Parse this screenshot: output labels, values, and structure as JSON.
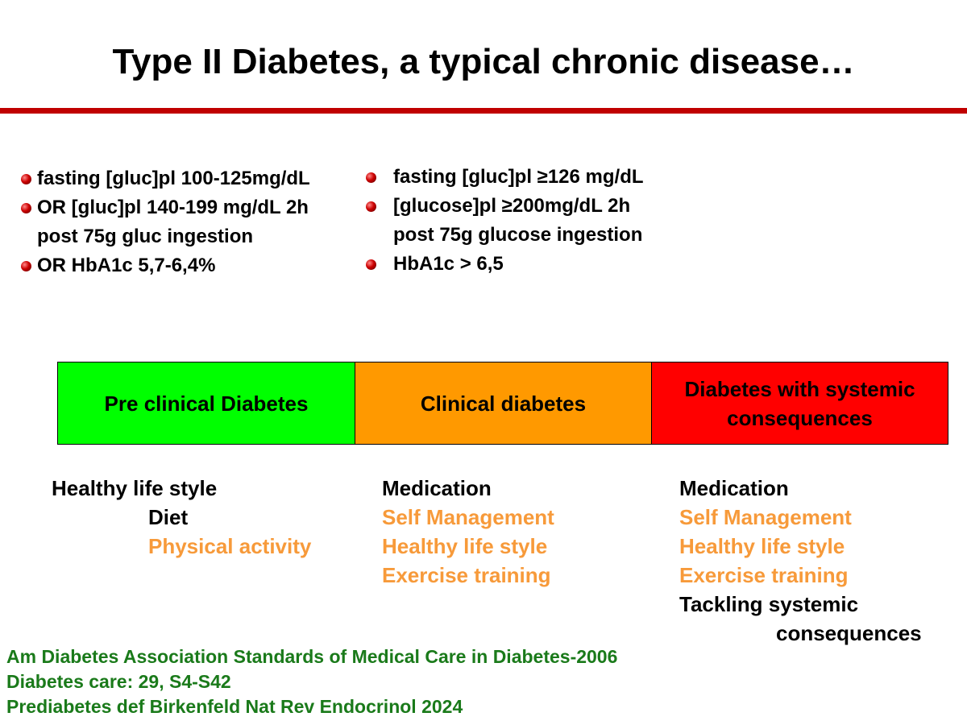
{
  "title": "Type II Diabetes, a typical chronic disease…",
  "criteria": [
    {
      "items": [
        "fasting [gluc]pl 100-125mg/dL",
        "OR [gluc]pl 140-199 mg/dL 2h",
        "post 75g gluc ingestion",
        "OR HbA1c 5,7-6,4%"
      ],
      "bullets": [
        true,
        true,
        false,
        true
      ]
    },
    {
      "items": [
        "fasting [gluc]pl ≥126 mg/dL",
        "[glucose]pl ≥200mg/dL 2h",
        "post 75g glucose ingestion",
        "HbA1c > 6,5"
      ],
      "bullets": [
        true,
        true,
        false,
        true
      ]
    }
  ],
  "stages": [
    "Pre clinical Diabetes",
    "Clinical diabetes",
    "Diabetes with systemic consequences"
  ],
  "actions": [
    [
      "Healthy life style",
      "Diet",
      "Physical activity"
    ],
    [
      "Medication",
      "Self Management",
      "Healthy life style",
      "Exercise training"
    ],
    [
      "Medication",
      "Self Management",
      "Healthy life style",
      "Exercise training",
      "Tackling systemic",
      "consequences"
    ]
  ],
  "references": [
    "Am Diabetes Association Standards of Medical Care in Diabetes-2006",
    "Diabetes care: 29, S4-S42",
    "Prediabetes def Birkenfeld Nat Rev Endocrinol 2024"
  ]
}
